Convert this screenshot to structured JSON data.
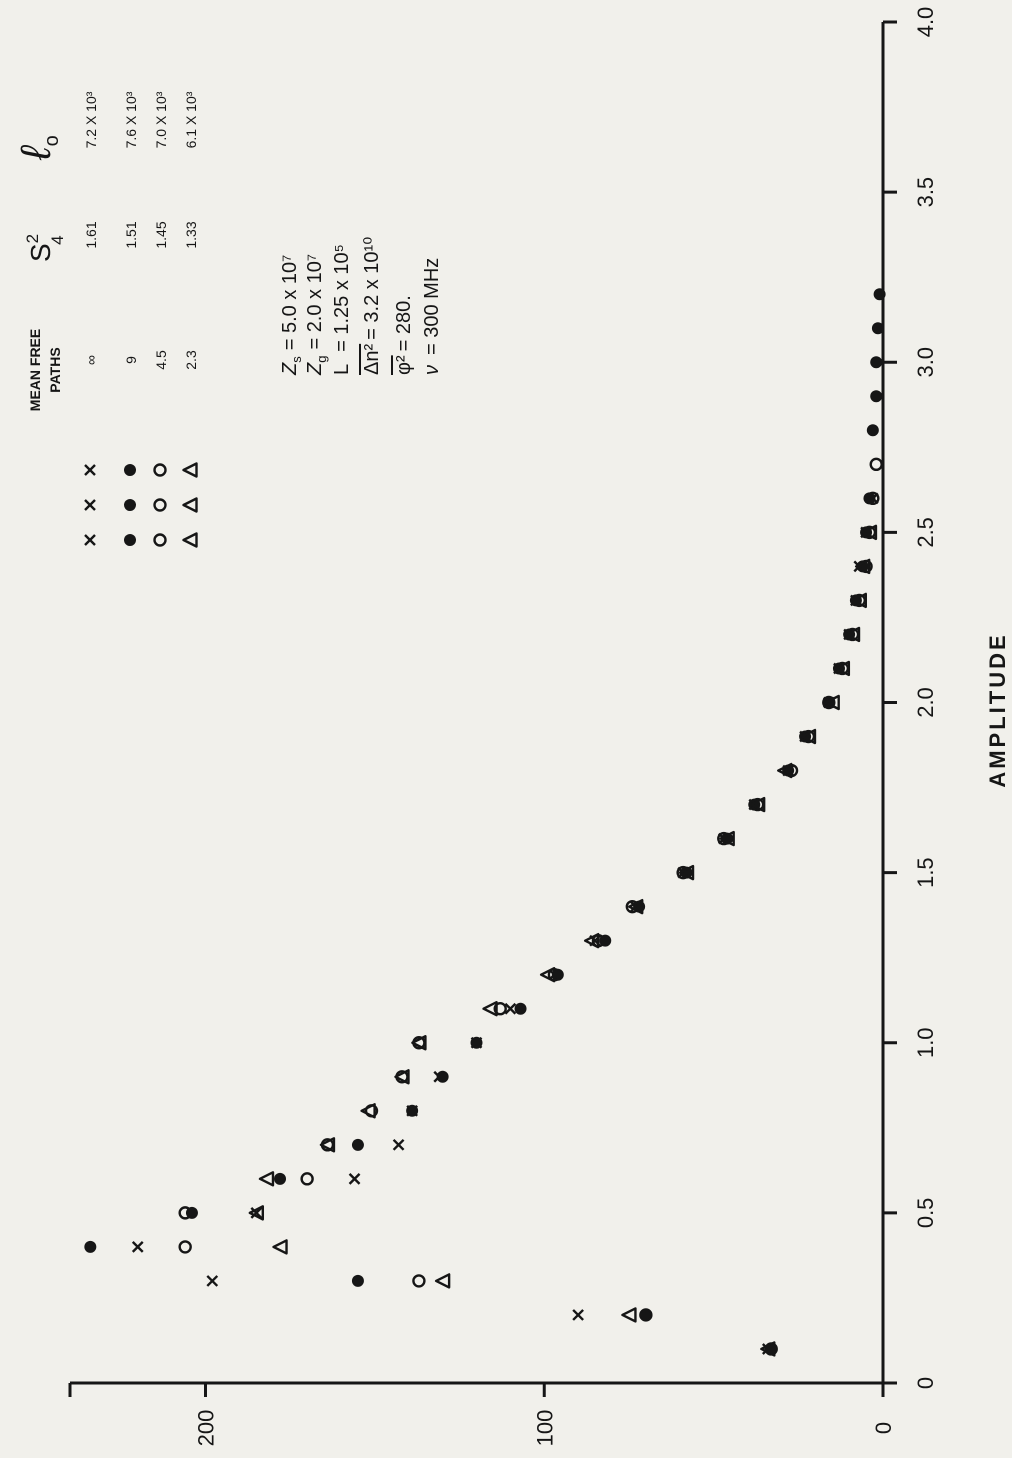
{
  "chart_data": {
    "type": "scatter",
    "title": "",
    "xlabel": "AMPLITUDE",
    "ylabel": "",
    "xlim": [
      0,
      4.0
    ],
    "ylim": [
      0,
      240
    ],
    "xticks": [
      "0",
      "0.5",
      "1.0",
      "1.5",
      "2.0",
      "2.5",
      "3.0",
      "3.5",
      "4.0"
    ],
    "yticks": [
      "0",
      "100",
      "200"
    ],
    "series": [
      {
        "name": "∞",
        "marker": "x",
        "s4_squared": "1.61",
        "l0": "7.2 X 10³",
        "points": [
          [
            0.1,
            34
          ],
          [
            0.2,
            90
          ],
          [
            0.3,
            198
          ],
          [
            0.4,
            220
          ],
          [
            0.5,
            185
          ],
          [
            0.6,
            156
          ],
          [
            0.7,
            143
          ],
          [
            0.8,
            139
          ],
          [
            0.9,
            131
          ],
          [
            1.0,
            120
          ],
          [
            1.1,
            110
          ],
          [
            1.2,
            97
          ],
          [
            1.3,
            85
          ],
          [
            1.4,
            73
          ],
          [
            1.5,
            59
          ],
          [
            1.6,
            47
          ],
          [
            1.7,
            38
          ],
          [
            1.8,
            28
          ],
          [
            1.9,
            23
          ],
          [
            2.0,
            16
          ],
          [
            2.1,
            13
          ],
          [
            2.2,
            10
          ],
          [
            2.3,
            8
          ],
          [
            2.4,
            7
          ],
          [
            2.5,
            5
          ],
          [
            2.6,
            3
          ]
        ]
      },
      {
        "name": "9",
        "marker": "filled-circle",
        "s4_squared": "1.51",
        "l0": "7.6 X 10³",
        "points": [
          [
            0.1,
            33
          ],
          [
            0.2,
            70
          ],
          [
            0.3,
            155
          ],
          [
            0.4,
            234
          ],
          [
            0.5,
            204
          ],
          [
            0.6,
            178
          ],
          [
            0.7,
            155
          ],
          [
            0.8,
            139
          ],
          [
            0.9,
            130
          ],
          [
            1.0,
            120
          ],
          [
            1.1,
            107
          ],
          [
            1.2,
            96
          ],
          [
            1.3,
            82
          ],
          [
            1.4,
            72
          ],
          [
            1.5,
            58
          ],
          [
            1.6,
            46
          ],
          [
            1.7,
            38
          ],
          [
            1.8,
            28
          ],
          [
            1.9,
            23
          ],
          [
            2.0,
            16
          ],
          [
            2.1,
            13
          ],
          [
            2.2,
            10
          ],
          [
            2.3,
            8
          ],
          [
            2.4,
            6
          ],
          [
            2.5,
            5
          ],
          [
            2.6,
            4
          ],
          [
            2.8,
            3
          ],
          [
            2.9,
            2
          ],
          [
            3.0,
            2
          ],
          [
            3.1,
            1.5
          ],
          [
            3.2,
            1
          ]
        ]
      },
      {
        "name": "4.5",
        "marker": "open-circle",
        "s4_squared": "1.45",
        "l0": "7.0 X 10³",
        "points": [
          [
            0.1,
            33
          ],
          [
            0.2,
            70
          ],
          [
            0.3,
            137
          ],
          [
            0.4,
            206
          ],
          [
            0.5,
            206
          ],
          [
            0.6,
            170
          ],
          [
            0.7,
            164
          ],
          [
            0.8,
            151
          ],
          [
            0.9,
            142
          ],
          [
            1.0,
            137
          ],
          [
            1.1,
            113
          ],
          [
            1.2,
            97
          ],
          [
            1.3,
            84
          ],
          [
            1.4,
            74
          ],
          [
            1.5,
            59
          ],
          [
            1.6,
            47
          ],
          [
            1.7,
            37
          ],
          [
            1.8,
            27
          ],
          [
            1.9,
            22
          ],
          [
            2.0,
            16
          ],
          [
            2.1,
            12
          ],
          [
            2.2,
            9
          ],
          [
            2.3,
            7
          ],
          [
            2.4,
            5
          ],
          [
            2.5,
            4
          ],
          [
            2.6,
            3
          ],
          [
            2.7,
            2
          ]
        ]
      },
      {
        "name": "2.3",
        "marker": "triangle",
        "s4_squared": "1.33",
        "l0": "6.1 X 10³",
        "points": [
          [
            0.1,
            34
          ],
          [
            0.2,
            75
          ],
          [
            0.3,
            130
          ],
          [
            0.4,
            178
          ],
          [
            0.5,
            185
          ],
          [
            0.6,
            182
          ],
          [
            0.7,
            164
          ],
          [
            0.8,
            152
          ],
          [
            0.9,
            142
          ],
          [
            1.0,
            137
          ],
          [
            1.1,
            116
          ],
          [
            1.2,
            99
          ],
          [
            1.3,
            86
          ],
          [
            1.4,
            73
          ],
          [
            1.5,
            58
          ],
          [
            1.6,
            46
          ],
          [
            1.7,
            37
          ],
          [
            1.8,
            29
          ],
          [
            1.9,
            22
          ],
          [
            2.0,
            15
          ],
          [
            2.1,
            12
          ],
          [
            2.2,
            9
          ],
          [
            2.3,
            7
          ],
          [
            2.4,
            6
          ],
          [
            2.5,
            4
          ]
        ]
      }
    ]
  },
  "legend": {
    "header_line1": "MEAN FREE",
    "header_line2": "PATHS",
    "s4_header": "S",
    "s4_sup": "2",
    "s4_sub": "4",
    "l0_header": "ℓ",
    "l0_sub": "o"
  },
  "params": {
    "zs_label": "Z",
    "zs_sub": "s",
    "zs_value": "= 5.0 x 10⁷",
    "zg_label": "Z",
    "zg_sub": "g",
    "zg_value": "= 2.0 x 10⁷",
    "L_label": "L",
    "L_value": "= 1.25 x 10⁵",
    "dn_label": "Δn²",
    "dn_value": "= 3.2 x 10¹⁰",
    "phi_label": "φ²",
    "phi_value": "= 280.",
    "nu_label": "ν",
    "nu_value": "= 300 MHz"
  }
}
